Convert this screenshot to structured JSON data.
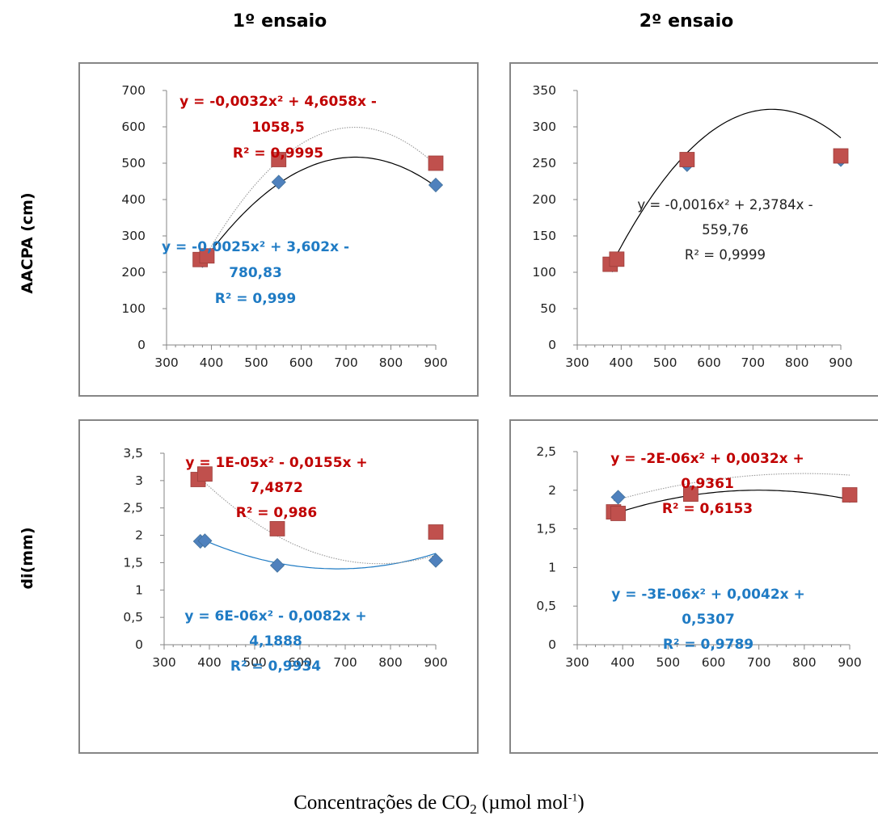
{
  "columns": {
    "left": "1º ensaio",
    "right": "2º ensaio"
  },
  "rows": {
    "top": "AACPA  (cm)",
    "bottom": "di(mm)"
  },
  "xlabel": {
    "main": "Concentrações de CO",
    "sub": "2",
    "unit_a": " (µmol mol",
    "sup": "-1",
    "unit_b": ")"
  },
  "colors": {
    "blue": "#4f81bd",
    "red": "#c0504d",
    "blue_text": "#1f7bc4",
    "red_text": "#c00000",
    "axis": "#868686",
    "fit": "#000000"
  },
  "chart_data": [
    {
      "type": "scatter",
      "panel": "AACPA 1º ensaio",
      "xlim": [
        300,
        900
      ],
      "xticks": [
        "300",
        "400",
        "500",
        "600",
        "700",
        "800",
        "900"
      ],
      "ylim": [
        0,
        700
      ],
      "yticks": [
        "0",
        "100",
        "200",
        "300",
        "400",
        "500",
        "600",
        "700"
      ],
      "series": [
        {
          "color": "blue",
          "marker": "diamond",
          "x": [
            380,
            550,
            900
          ],
          "y": [
            232,
            448,
            440
          ],
          "fit": [
            -0.0025,
            3.602,
            -780.83
          ],
          "fit_style": "solid"
        },
        {
          "color": "red",
          "marker": "square",
          "x": [
            375,
            390,
            550,
            900
          ],
          "y": [
            235,
            245,
            510,
            500
          ],
          "fit": [
            -0.0032,
            4.6058,
            -1058.5
          ],
          "fit_style": "dotted"
        }
      ],
      "annotations": [
        {
          "color": "red",
          "lines": [
            "y = -0,0032x² + 4,6058x -",
            "1058,5",
            "R² = 0,9995"
          ]
        },
        {
          "color": "blue",
          "lines": [
            "y = -0,0025x² + 3,602x -",
            "780,83",
            "R² = 0,999"
          ]
        }
      ]
    },
    {
      "type": "scatter",
      "panel": "AACPA 2º ensaio",
      "xlim": [
        300,
        900
      ],
      "xticks": [
        "300",
        "400",
        "500",
        "600",
        "700",
        "800",
        "900"
      ],
      "ylim": [
        0,
        350
      ],
      "yticks": [
        "0",
        "50",
        "100",
        "150",
        "200",
        "250",
        "300",
        "350"
      ],
      "series": [
        {
          "color": "blue",
          "marker": "diamond",
          "x": [
            380,
            550,
            900
          ],
          "y": [
            110,
            248,
            255
          ],
          "fit": [
            -0.0016,
            2.3784,
            -559.76
          ],
          "fit_style": "solid"
        },
        {
          "color": "red",
          "marker": "square",
          "x": [
            375,
            390,
            550,
            900
          ],
          "y": [
            111,
            118,
            255,
            260
          ],
          "fit": null,
          "fit_style": "none"
        }
      ],
      "annotations": [
        {
          "color": "plain",
          "lines": [
            "y = -0,0016x² + 2,3784x -",
            "559,76",
            "R² = 0,9999"
          ]
        }
      ]
    },
    {
      "type": "scatter",
      "panel": "di 1º ensaio",
      "xlim": [
        300,
        900
      ],
      "xticks": [
        "300",
        "400",
        "500",
        "600",
        "700",
        "800",
        "900"
      ],
      "ylim": [
        0,
        3.5
      ],
      "yticks": [
        "0",
        "0,5",
        "1",
        "1,5",
        "2",
        "2,5",
        "3",
        "3,5"
      ],
      "series": [
        {
          "color": "blue",
          "marker": "diamond",
          "x": [
            380,
            390,
            550,
            900
          ],
          "y": [
            1.89,
            1.9,
            1.45,
            1.54
          ],
          "fit": [
            6e-06,
            -0.0082,
            4.1888
          ],
          "fit_style": "solid-blue"
        },
        {
          "color": "red",
          "marker": "square",
          "x": [
            375,
            390,
            550,
            900
          ],
          "y": [
            3.02,
            3.12,
            2.12,
            2.06
          ],
          "fit": [
            1e-05,
            -0.0155,
            7.4872
          ],
          "fit_style": "dotted"
        }
      ],
      "annotations": [
        {
          "color": "red",
          "lines": [
            "y = 1E-05x² - 0,0155x +",
            "7,4872",
            "R² = 0,986"
          ]
        },
        {
          "color": "blue",
          "lines": [
            "y = 6E-06x² - 0,0082x +",
            "4,1888",
            "R² = 0,9934"
          ]
        }
      ]
    },
    {
      "type": "scatter",
      "panel": "di 2º ensaio",
      "xlim": [
        300,
        900
      ],
      "xticks": [
        "300",
        "400",
        "500",
        "600",
        "700",
        "800",
        "900"
      ],
      "ylim": [
        0,
        2.5
      ],
      "yticks": [
        "0",
        "0,5",
        "1",
        "1,5",
        "2",
        "2,5"
      ],
      "series": [
        {
          "color": "blue",
          "marker": "diamond",
          "x": [
            390,
            550,
            900
          ],
          "y": [
            1.91,
            1.97,
            1.93
          ],
          "fit": [
            -3e-06,
            0.0042,
            0.5307
          ],
          "fit_style": "solid"
        },
        {
          "color": "red",
          "marker": "square",
          "x": [
            380,
            390,
            550,
            900
          ],
          "y": [
            1.72,
            1.7,
            1.95,
            1.94
          ],
          "fit": [
            -2e-06,
            0.0032,
            0.9361
          ],
          "fit_style": "dotted"
        }
      ],
      "annotations": [
        {
          "color": "red",
          "lines": [
            "y = -2E-06x² + 0,0032x +",
            "0,9361",
            "R² = 0,6153"
          ]
        },
        {
          "color": "blue",
          "lines": [
            "y = -3E-06x² + 0,0042x +",
            "0,5307",
            "R² = 0,9789"
          ]
        }
      ]
    }
  ]
}
